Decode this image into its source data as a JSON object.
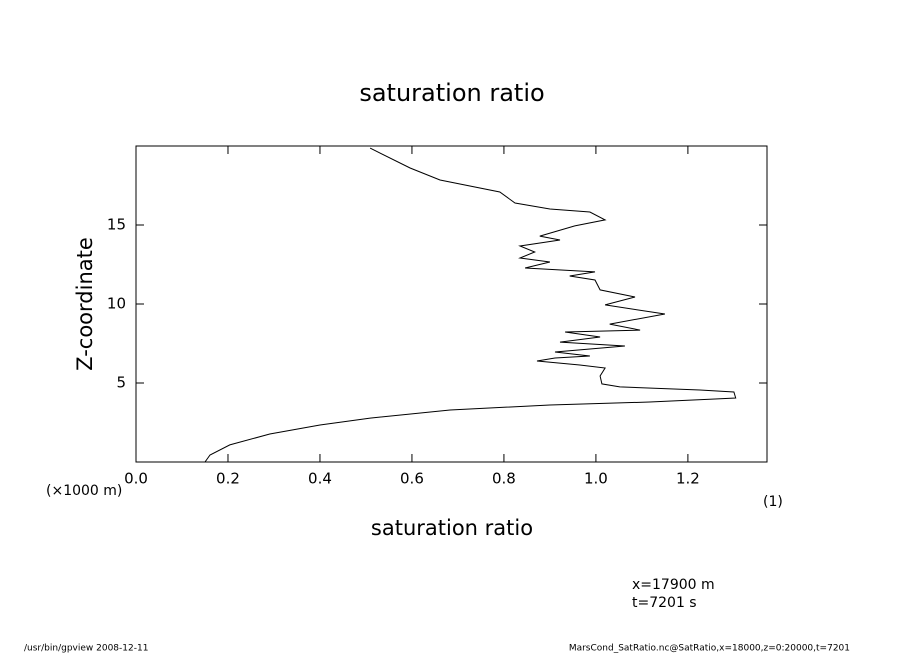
{
  "chart_data": {
    "type": "line",
    "title": "saturation ratio",
    "x_label": "saturation ratio",
    "y_label": "Z-coordinate",
    "y_unit": "(×1000 m)",
    "x_unit": "(1)",
    "annotations": [
      "x=17900 m",
      "t=7201 s"
    ],
    "footer_left": "/usr/bin/gpview   2008-12-11",
    "footer_right": "MarsCond_SatRatio.nc@SatRatio,x=18000,z=0:20000,t=7201",
    "color": "#000000",
    "x": [
      0.15,
      0.161,
      0.204,
      0.291,
      0.4,
      0.509,
      0.683,
      0.9,
      1.117,
      1.259,
      1.304,
      1.3,
      1.226,
      1.052,
      1.013,
      1.009,
      1.02,
      0.965,
      0.872,
      0.911,
      0.987,
      0.911,
      1.063,
      0.922,
      1.009,
      0.933,
      1.096,
      1.03,
      1.15,
      1.02,
      1.085,
      1.009,
      0.998,
      0.943,
      0.998,
      0.846,
      0.9,
      0.835,
      0.867,
      0.835,
      0.922,
      0.878,
      0.954,
      1.02,
      0.987,
      0.9,
      0.824,
      0.791,
      0.661,
      0.596,
      0.509
    ],
    "values": [
      0,
      0.44,
      1.08,
      1.77,
      2.34,
      2.78,
      3.29,
      3.61,
      3.8,
      3.99,
      4.05,
      4.43,
      4.56,
      4.75,
      4.94,
      5.44,
      5.95,
      6.14,
      6.39,
      6.58,
      6.71,
      6.96,
      7.34,
      7.59,
      7.91,
      8.23,
      8.35,
      8.73,
      9.37,
      9.94,
      10.44,
      10.89,
      11.52,
      11.77,
      12.03,
      12.28,
      12.66,
      12.91,
      13.29,
      13.67,
      14.05,
      14.3,
      14.94,
      15.32,
      15.82,
      16.01,
      16.39,
      17.09,
      17.85,
      18.61,
      19.87
    ],
    "xlim": [
      0,
      1.372
    ],
    "ylim": [
      0,
      20
    ],
    "xticks": [
      {
        "value": 0,
        "label": "0.0"
      },
      0.2,
      0.4,
      0.6,
      0.8,
      {
        "value": 1,
        "label": "1.0"
      },
      1.2
    ],
    "yticks": [
      5,
      10,
      15
    ]
  }
}
